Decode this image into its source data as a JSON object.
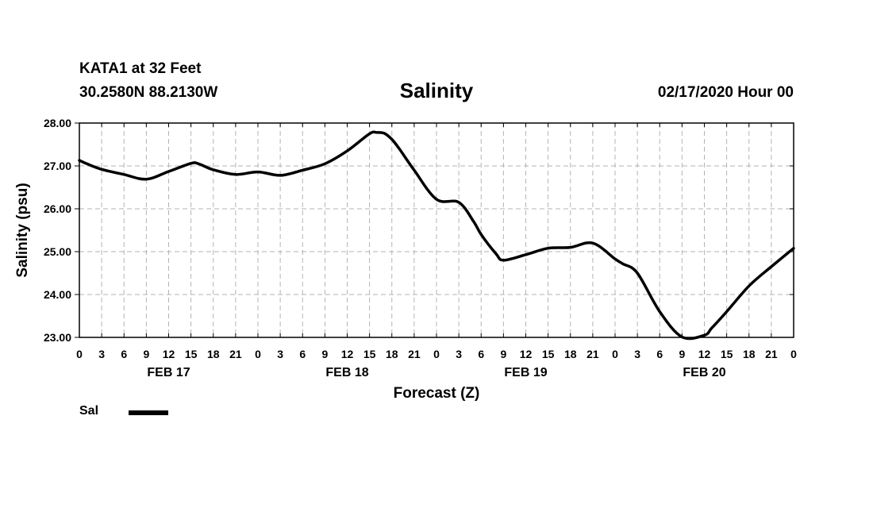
{
  "header": {
    "station": "KATA1 at 32 Feet",
    "coords": "30.2580N 88.2130W",
    "runtime": "02/17/2020 Hour 00"
  },
  "chart_data": {
    "type": "line",
    "title": "Salinity",
    "xlabel": "Forecast (Z)",
    "ylabel": "Salinity (psu)",
    "xlim": [
      0,
      96
    ],
    "ylim": [
      23.0,
      28.0
    ],
    "grid": true,
    "legend_position": "bottom-left",
    "yticks": [
      "23.00",
      "24.00",
      "25.00",
      "26.00",
      "27.00",
      "28.00"
    ],
    "x_tick_labels": [
      "0",
      "3",
      "6",
      "9",
      "12",
      "15",
      "18",
      "21",
      "0",
      "3",
      "6",
      "9",
      "12",
      "15",
      "18",
      "21",
      "0",
      "3",
      "6",
      "9",
      "12",
      "15",
      "18",
      "21",
      "0",
      "3",
      "6",
      "9",
      "12",
      "15",
      "18",
      "21",
      "0"
    ],
    "day_labels": [
      {
        "label": "FEB 17",
        "x": 12
      },
      {
        "label": "FEB 18",
        "x": 36
      },
      {
        "label": "FEB 19",
        "x": 60
      },
      {
        "label": "FEB 20",
        "x": 84
      }
    ],
    "series": [
      {
        "name": "Sal",
        "color": "#000000",
        "x": [
          0,
          1,
          3,
          6,
          9,
          12,
          15,
          16,
          18,
          21,
          24,
          27,
          30,
          33,
          36,
          39,
          40,
          41,
          42,
          43,
          45,
          48,
          51,
          53,
          54,
          56,
          57,
          60,
          63,
          66,
          69,
          72,
          73,
          75,
          78,
          81,
          84,
          85,
          87,
          90,
          93,
          96
        ],
        "y": [
          27.13,
          27.05,
          26.92,
          26.8,
          26.69,
          26.87,
          27.06,
          27.05,
          26.91,
          26.8,
          26.86,
          26.78,
          26.9,
          27.05,
          27.35,
          27.75,
          27.78,
          27.76,
          27.62,
          27.4,
          26.9,
          26.22,
          26.15,
          25.7,
          25.4,
          24.95,
          24.8,
          24.93,
          25.08,
          25.1,
          25.2,
          24.83,
          24.72,
          24.5,
          23.6,
          23.01,
          23.05,
          23.22,
          23.6,
          24.2,
          24.65,
          25.08
        ]
      }
    ]
  }
}
